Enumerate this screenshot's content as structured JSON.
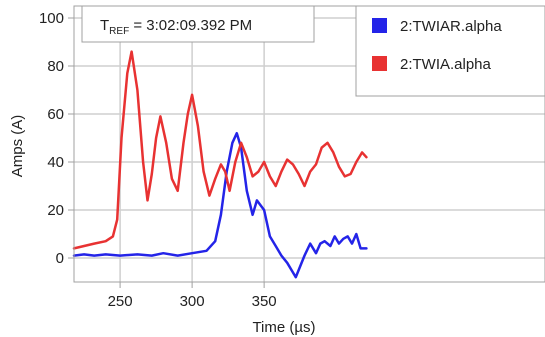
{
  "chart_data": {
    "type": "line",
    "xlabel": "Time (µs)",
    "ylabel": "Amps (A)",
    "xlim": [
      218,
      545
    ],
    "ylim": [
      -10,
      105
    ],
    "x_ticks": [
      250,
      300,
      350
    ],
    "x_tick_labels": [
      "250",
      "300",
      "350"
    ],
    "y_ticks": [
      0,
      20,
      40,
      60,
      80,
      100
    ],
    "y_tick_labels": [
      "0",
      "20",
      "40",
      "60",
      "80",
      "100"
    ],
    "grid": true,
    "legend_position": "top-right",
    "annotation": {
      "prefix": "T",
      "subscript": "REF",
      "value": " = 3:02:09.392 PM"
    },
    "series": [
      {
        "name": "2:TWIAR.alpha",
        "color": "#2424e8",
        "x": [
          218,
          225,
          232,
          240,
          250,
          262,
          272,
          280,
          290,
          300,
          310,
          316,
          320,
          324,
          328,
          331,
          334,
          338,
          342,
          345,
          350,
          354,
          358,
          362,
          366,
          370,
          372,
          374,
          378,
          382,
          386,
          389,
          392,
          396,
          399,
          402,
          405,
          408,
          411,
          414,
          417,
          421
        ],
        "y": [
          1,
          1.5,
          1,
          1.5,
          1,
          1.5,
          1,
          2,
          1,
          2,
          3,
          7,
          18,
          36,
          48,
          52,
          46,
          28,
          18,
          24,
          20,
          9,
          5,
          1,
          -2,
          -6,
          -8,
          -5,
          1,
          6,
          2,
          6,
          7,
          5,
          9,
          6,
          8,
          9,
          6,
          10,
          4,
          4
        ]
      },
      {
        "name": "2:TWIA.alpha",
        "color": "#e83232",
        "x": [
          218,
          225,
          232,
          240,
          245,
          248,
          251,
          255,
          258,
          262,
          266,
          269,
          272,
          275,
          278,
          282,
          286,
          290,
          294,
          297,
          300,
          304,
          308,
          312,
          316,
          320,
          323,
          326,
          330,
          334,
          338,
          342,
          346,
          350,
          354,
          358,
          362,
          366,
          370,
          374,
          378,
          382,
          386,
          390,
          394,
          398,
          402,
          406,
          410,
          414,
          418,
          421
        ],
        "y": [
          4,
          5,
          6,
          7,
          9,
          16,
          50,
          77,
          86,
          70,
          40,
          24,
          35,
          50,
          59,
          48,
          33,
          28,
          48,
          60,
          68,
          55,
          36,
          26,
          33,
          39,
          36,
          28,
          40,
          48,
          42,
          34,
          36,
          40,
          34,
          30,
          36,
          41,
          39,
          35,
          30,
          36,
          39,
          46,
          48,
          44,
          38,
          34,
          35,
          40,
          44,
          42
        ]
      }
    ]
  }
}
